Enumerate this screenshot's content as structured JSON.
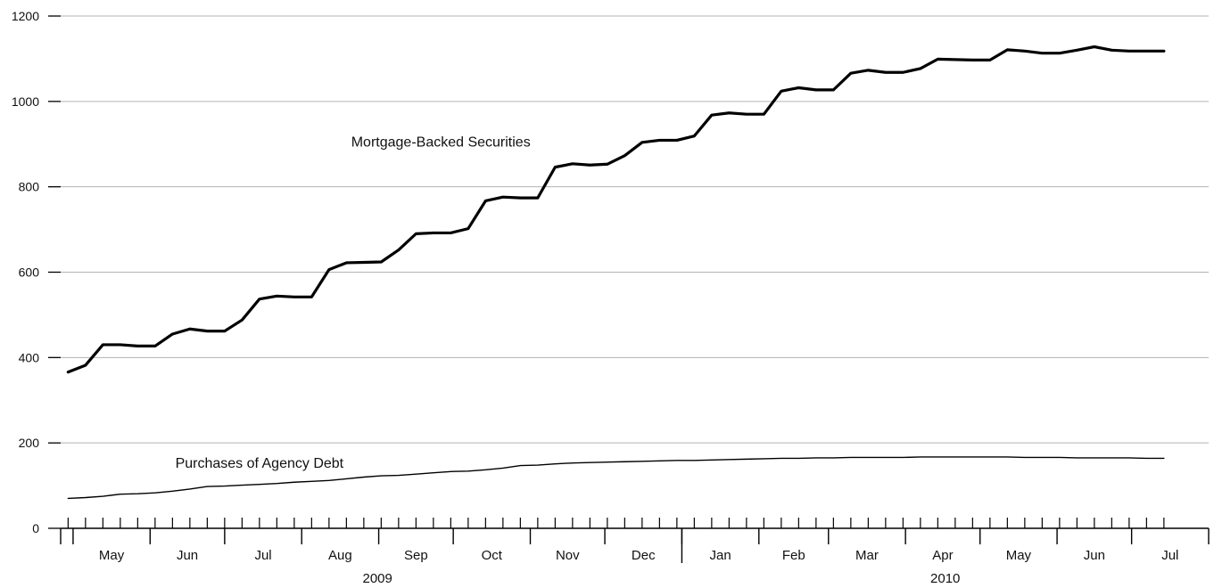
{
  "chart_data": {
    "type": "line",
    "title": "",
    "xlabel": "",
    "ylabel": "",
    "ylim": [
      0,
      1200
    ],
    "yticks": [
      0,
      200,
      400,
      600,
      800,
      1000,
      1200
    ],
    "grid": true,
    "x_range": [
      "2009-04-26",
      "2010-07-31"
    ],
    "month_labels": [
      {
        "label": "May",
        "start": "2009-05-01",
        "end": "2009-05-31"
      },
      {
        "label": "Jun",
        "start": "2009-06-01",
        "end": "2009-06-30"
      },
      {
        "label": "Jul",
        "start": "2009-07-01",
        "end": "2009-07-31"
      },
      {
        "label": "Aug",
        "start": "2009-08-01",
        "end": "2009-08-31"
      },
      {
        "label": "Sep",
        "start": "2009-09-01",
        "end": "2009-09-30"
      },
      {
        "label": "Oct",
        "start": "2009-10-01",
        "end": "2009-10-31"
      },
      {
        "label": "Nov",
        "start": "2009-11-01",
        "end": "2009-11-30"
      },
      {
        "label": "Dec",
        "start": "2009-12-01",
        "end": "2009-12-31"
      },
      {
        "label": "Jan",
        "start": "2010-01-01",
        "end": "2010-01-31"
      },
      {
        "label": "Feb",
        "start": "2010-02-01",
        "end": "2010-02-28"
      },
      {
        "label": "Mar",
        "start": "2010-03-01",
        "end": "2010-03-31"
      },
      {
        "label": "Apr",
        "start": "2010-04-01",
        "end": "2010-04-30"
      },
      {
        "label": "May",
        "start": "2010-05-01",
        "end": "2010-05-31"
      },
      {
        "label": "Jun",
        "start": "2010-06-01",
        "end": "2010-06-30"
      },
      {
        "label": "Jul",
        "start": "2010-07-01",
        "end": "2010-07-31"
      }
    ],
    "year_labels": [
      {
        "label": "2009",
        "start": "2009-05-01",
        "end": "2009-12-31"
      },
      {
        "label": "2010",
        "start": "2010-01-01",
        "end": "2010-07-31"
      }
    ],
    "x": [
      "2009-04-29",
      "2009-05-06",
      "2009-05-13",
      "2009-05-20",
      "2009-05-27",
      "2009-06-03",
      "2009-06-10",
      "2009-06-17",
      "2009-06-24",
      "2009-07-01",
      "2009-07-08",
      "2009-07-15",
      "2009-07-22",
      "2009-07-29",
      "2009-08-05",
      "2009-08-12",
      "2009-08-19",
      "2009-08-26",
      "2009-09-02",
      "2009-09-09",
      "2009-09-16",
      "2009-09-23",
      "2009-09-30",
      "2009-10-07",
      "2009-10-14",
      "2009-10-21",
      "2009-10-28",
      "2009-11-04",
      "2009-11-11",
      "2009-11-18",
      "2009-11-25",
      "2009-12-02",
      "2009-12-09",
      "2009-12-16",
      "2009-12-23",
      "2009-12-30",
      "2010-01-06",
      "2010-01-13",
      "2010-01-20",
      "2010-01-27",
      "2010-02-03",
      "2010-02-10",
      "2010-02-17",
      "2010-02-24",
      "2010-03-03",
      "2010-03-10",
      "2010-03-17",
      "2010-03-24",
      "2010-03-31",
      "2010-04-07",
      "2010-04-14",
      "2010-04-21",
      "2010-04-28",
      "2010-05-05",
      "2010-05-12",
      "2010-05-19",
      "2010-05-26",
      "2010-06-02",
      "2010-06-09",
      "2010-06-16",
      "2010-06-23",
      "2010-06-30",
      "2010-07-07",
      "2010-07-14"
    ],
    "series": [
      {
        "name": "Mortgage-Backed Securities",
        "stroke_width": 3.2,
        "label_at": "2009-09-26",
        "label_value": 905,
        "values": [
          366,
          382,
          430,
          430,
          427,
          427,
          455,
          467,
          462,
          462,
          488,
          537,
          544,
          542,
          542,
          606,
          622,
          623,
          624,
          652,
          690,
          692,
          692,
          702,
          767,
          776,
          774,
          774,
          846,
          854,
          851,
          853,
          873,
          904,
          909,
          909,
          919,
          968,
          973,
          970,
          970,
          1024,
          1032,
          1027,
          1027,
          1066,
          1073,
          1068,
          1068,
          1077,
          1099,
          1098,
          1097,
          1097,
          1121,
          1118,
          1113,
          1113,
          1120,
          1128,
          1120,
          1118,
          1118,
          1118
        ]
      },
      {
        "name": "Purchases of Agency Debt",
        "stroke_width": 1.4,
        "label_at": "2009-07-15",
        "label_value": 152,
        "values": [
          70,
          72,
          75,
          80,
          81,
          83,
          87,
          92,
          98,
          99,
          101,
          103,
          105,
          108,
          110,
          112,
          116,
          120,
          123,
          124,
          127,
          130,
          133,
          134,
          137,
          141,
          147,
          148,
          151,
          153,
          154,
          155,
          156,
          157,
          158,
          159,
          159,
          160,
          161,
          162,
          163,
          164,
          164,
          165,
          165,
          166,
          166,
          166,
          166,
          167,
          167,
          167,
          167,
          167,
          167,
          166,
          166,
          166,
          165,
          165,
          165,
          165,
          164,
          164
        ]
      }
    ]
  }
}
